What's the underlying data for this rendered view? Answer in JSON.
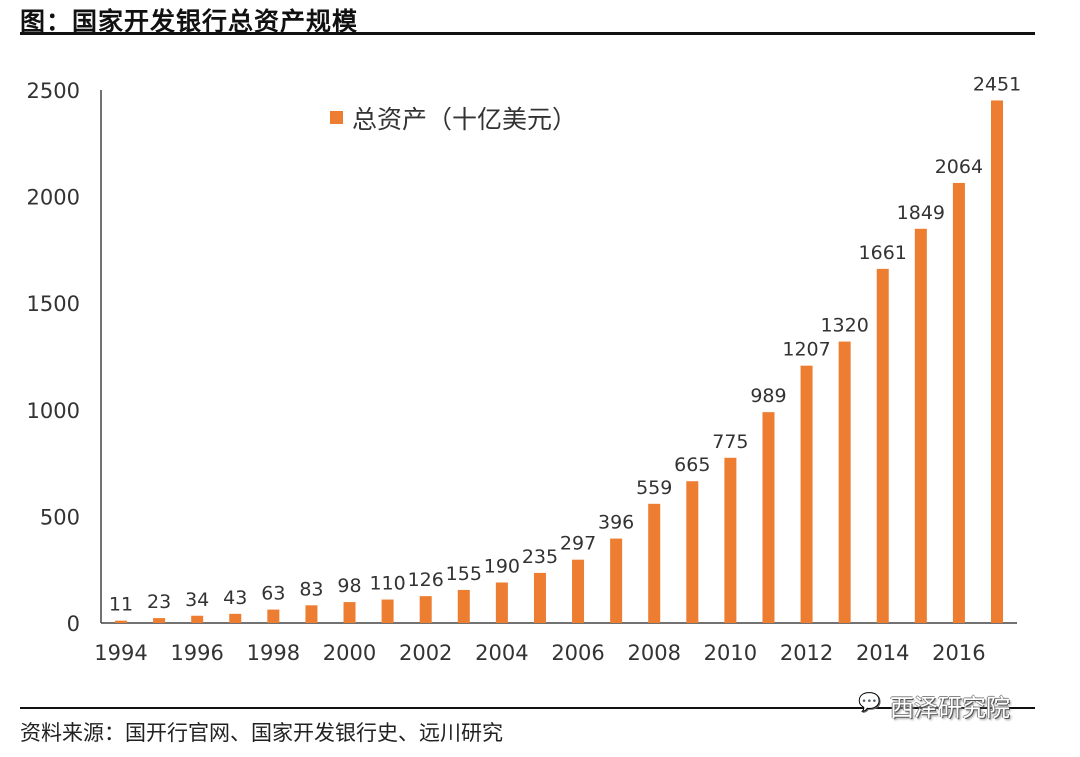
{
  "title": "图：国家开发银行总资产规模",
  "source": "资料来源：国开行官网、国家开发银行史、远川研究",
  "watermark": "西泽研究院",
  "chart_data": {
    "type": "bar",
    "title": "",
    "xlabel": "",
    "ylabel": "",
    "ylim": [
      0,
      2500
    ],
    "yticks": [
      0,
      500,
      1000,
      1500,
      2000,
      2500
    ],
    "xtick_labels": [
      "1994",
      "1996",
      "1998",
      "2000",
      "2002",
      "2004",
      "2006",
      "2008",
      "2010",
      "2012",
      "2014",
      "2016"
    ],
    "categories": [
      "1994",
      "1995",
      "1996",
      "1997",
      "1998",
      "1999",
      "2000",
      "2001",
      "2002",
      "2003",
      "2004",
      "2005",
      "2006",
      "2007",
      "2008",
      "2009",
      "2010",
      "2011",
      "2012",
      "2013",
      "2014",
      "2015",
      "2016",
      "2017"
    ],
    "series": [
      {
        "name": "总资产（十亿美元）",
        "color": "#ED7D31",
        "values": [
          11,
          23,
          34,
          43,
          63,
          83,
          98,
          110,
          126,
          155,
          190,
          235,
          297,
          396,
          559,
          665,
          775,
          989,
          1207,
          1320,
          1661,
          1849,
          2064,
          2451
        ]
      }
    ],
    "legend": "top-center",
    "grid": false,
    "data_labels": true
  }
}
